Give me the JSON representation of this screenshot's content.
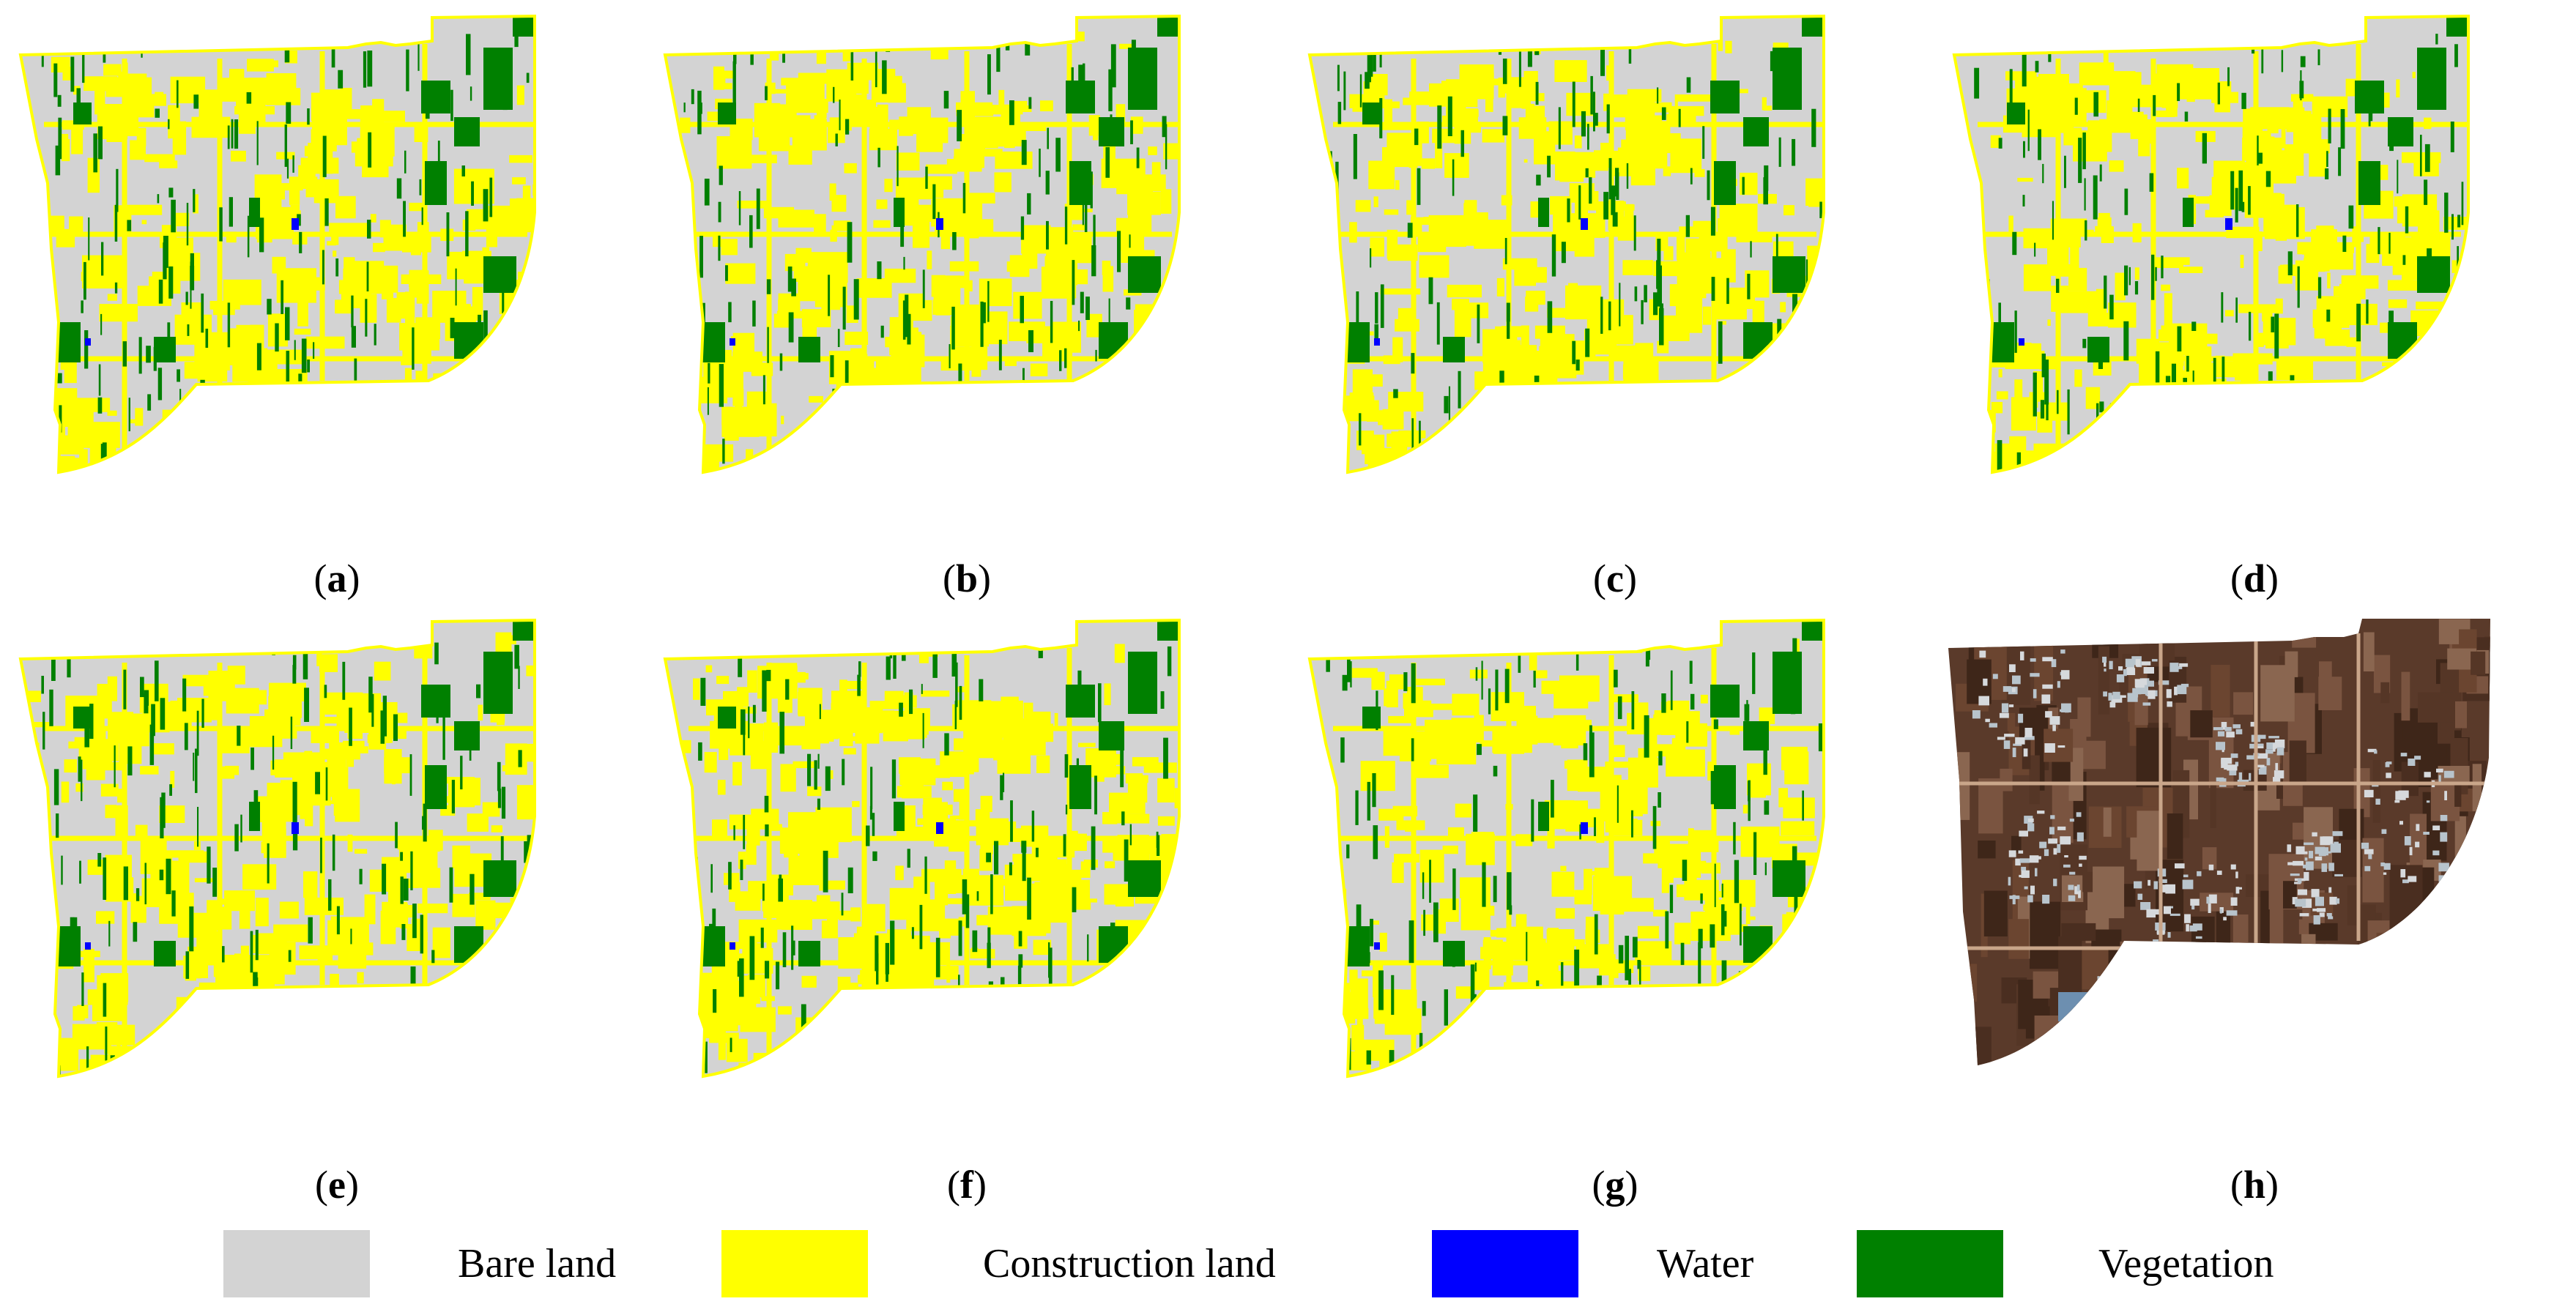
{
  "panels": [
    {
      "letter": "a",
      "kind": "classified",
      "yellow_share": 0.3
    },
    {
      "letter": "b",
      "kind": "classified",
      "yellow_share": 0.36
    },
    {
      "letter": "c",
      "kind": "classified",
      "yellow_share": 0.35
    },
    {
      "letter": "d",
      "kind": "classified",
      "yellow_share": 0.36
    },
    {
      "letter": "e",
      "kind": "classified",
      "yellow_share": 0.33
    },
    {
      "letter": "f",
      "kind": "classified",
      "yellow_share": 0.52
    },
    {
      "letter": "g",
      "kind": "classified",
      "yellow_share": 0.27
    },
    {
      "letter": "h",
      "kind": "satellite-image"
    }
  ],
  "legend": [
    {
      "label": "Bare land",
      "color": "#d3d3d3"
    },
    {
      "label": "Construction land",
      "color": "#ffff00"
    },
    {
      "label": "Water",
      "color": "#0000ff"
    },
    {
      "label": "Vegetation",
      "color": "#008000"
    }
  ]
}
